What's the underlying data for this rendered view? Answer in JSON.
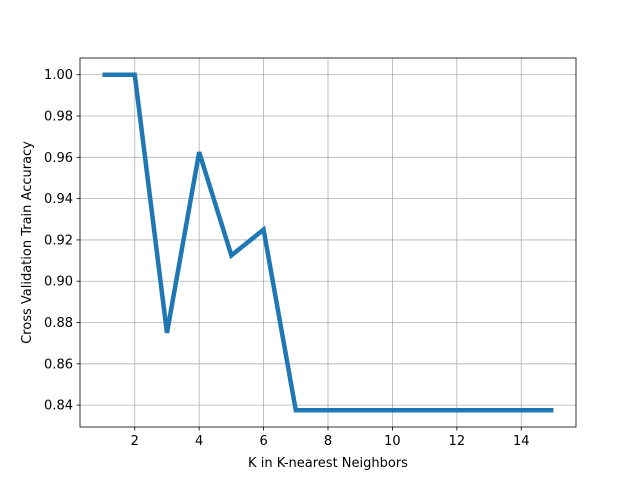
{
  "chart_data": {
    "type": "line",
    "title": "",
    "xlabel": "K in K-nearest Neighbors",
    "ylabel": "Cross Validation Train Accuracy",
    "xlim": [
      0.3,
      15.7
    ],
    "ylim": [
      0.8294,
      1.0081
    ],
    "xticks": [
      2,
      4,
      6,
      8,
      10,
      12,
      14
    ],
    "yticks": [
      0.84,
      0.86,
      0.88,
      0.9,
      0.92,
      0.94,
      0.96,
      0.98,
      1.0
    ],
    "xtick_labels": [
      "2",
      "4",
      "6",
      "8",
      "10",
      "12",
      "14"
    ],
    "ytick_labels": [
      "0.84",
      "0.86",
      "0.88",
      "0.90",
      "0.92",
      "0.94",
      "0.96",
      "0.98",
      "1.00"
    ],
    "grid": true,
    "legend": "none",
    "series": [
      {
        "color": "#1f77b4",
        "x": [
          1,
          2,
          3,
          4,
          5,
          6,
          7,
          8,
          9,
          10,
          11,
          12,
          13,
          14,
          15
        ],
        "y": [
          1.0,
          1.0,
          0.875,
          0.9625,
          0.9125,
          0.925,
          0.8375,
          0.8375,
          0.8375,
          0.8375,
          0.8375,
          0.8375,
          0.8375,
          0.8375,
          0.8375
        ]
      }
    ]
  }
}
